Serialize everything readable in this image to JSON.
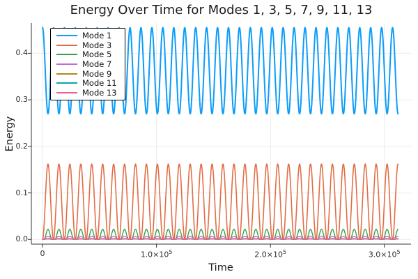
{
  "title": "Energy Over Time for Modes 1, 3, 5, 7, 9, 11, 13",
  "axes": {
    "xlabel": "Time",
    "ylabel": "Energy"
  },
  "chart_data": {
    "type": "line",
    "title": "Energy Over Time for Modes 1, 3, 5, 7, 9, 11, 13",
    "xlabel": "Time",
    "ylabel": "Energy",
    "xlim": [
      -9800,
      323400
    ],
    "ylim": [
      -0.01,
      0.465
    ],
    "x_ticks": [
      {
        "value": 0,
        "label": "0"
      },
      {
        "value": 100000,
        "label": "1.0×10^5"
      },
      {
        "value": 200000,
        "label": "2.0×10^5"
      },
      {
        "value": 300000,
        "label": "3.0×10^5"
      }
    ],
    "y_ticks": [
      {
        "value": 0.0,
        "label": "0.0"
      },
      {
        "value": 0.1,
        "label": "0.1"
      },
      {
        "value": 0.2,
        "label": "0.2"
      },
      {
        "value": 0.3,
        "label": "0.3"
      },
      {
        "value": 0.4,
        "label": "0.4"
      }
    ],
    "grid": true,
    "legend_position": "top-left",
    "time_range": [
      0,
      312000
    ],
    "oscillation_period": 9600,
    "series": [
      {
        "name": "Mode 1",
        "color": "#0D9DF8",
        "model": "offset-cos",
        "mean": 0.3625,
        "amplitude": 0.0925,
        "max": 0.455,
        "min": 0.27,
        "stroke_width": 2.0
      },
      {
        "name": "Mode 3",
        "color": "#E26E46",
        "model": "sin2",
        "max": 0.162,
        "min": 0.0,
        "stroke_width": 1.6
      },
      {
        "name": "Mode 5",
        "color": "#3BA248",
        "model": "sin4",
        "max": 0.022,
        "min": 0.0,
        "stroke_width": 1.4
      },
      {
        "name": "Mode 7",
        "color": "#C46BD3",
        "model": "sin2",
        "max": 0.0065,
        "min": 0.0,
        "stroke_width": 1.4
      },
      {
        "name": "Mode 9",
        "color": "#AB8D17",
        "model": "sin2",
        "max": 0.002,
        "min": 0.0,
        "stroke_width": 1.3
      },
      {
        "name": "Mode 11",
        "color": "#00A9AD",
        "model": "sin2",
        "max": 0.0012,
        "min": 0.0,
        "stroke_width": 1.3
      },
      {
        "name": "Mode 13",
        "color": "#EE6093",
        "model": "sin2",
        "max": 0.0009,
        "min": 0.0,
        "stroke_width": 1.3
      }
    ]
  }
}
